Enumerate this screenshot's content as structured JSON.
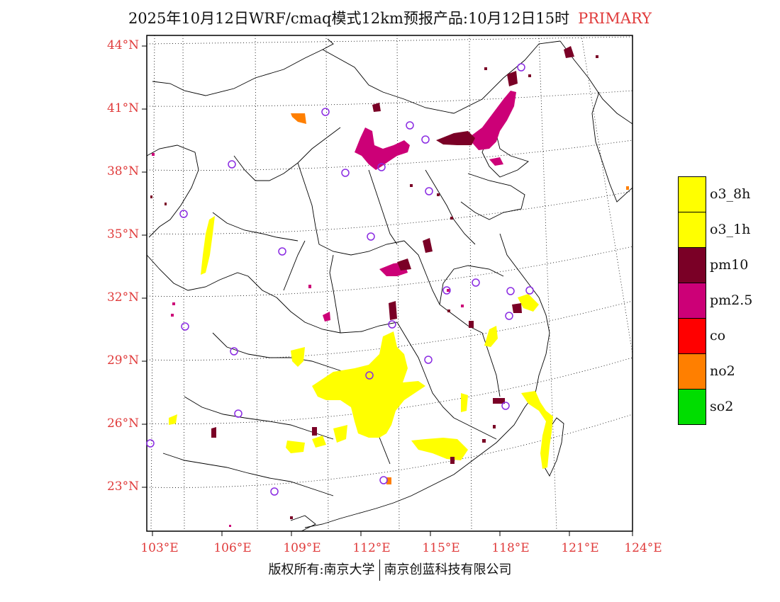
{
  "title": {
    "main": "2025年10月12日WRF/cmaq模式12km预报产品:10月12日15时",
    "tag": "PRIMARY"
  },
  "axes": {
    "lat_labels": [
      "44°N",
      "41°N",
      "38°N",
      "35°N",
      "32°N",
      "29°N",
      "26°N",
      "23°N"
    ],
    "lon_labels": [
      "103°E",
      "106°E",
      "109°E",
      "112°E",
      "115°E",
      "118°E",
      "121°E",
      "124°E"
    ],
    "label_color": "#e03b3b"
  },
  "legend": {
    "items": [
      {
        "label": "o3_8h",
        "color": "#ffff00"
      },
      {
        "label": "o3_1h",
        "color": "#ffff00"
      },
      {
        "label": "pm10",
        "color": "#7a0026"
      },
      {
        "label": "pm2.5",
        "color": "#cc0077"
      },
      {
        "label": "co",
        "color": "#ff0000"
      },
      {
        "label": "no2",
        "color": "#ff7f00"
      },
      {
        "label": "so2",
        "color": "#00dd00"
      }
    ]
  },
  "footer": {
    "left": "版权所有:南京大学",
    "right": "南京创蓝科技有限公司"
  },
  "markers": {
    "station_icon": "circle-marker-icon",
    "station_color": "#8a2be2"
  }
}
